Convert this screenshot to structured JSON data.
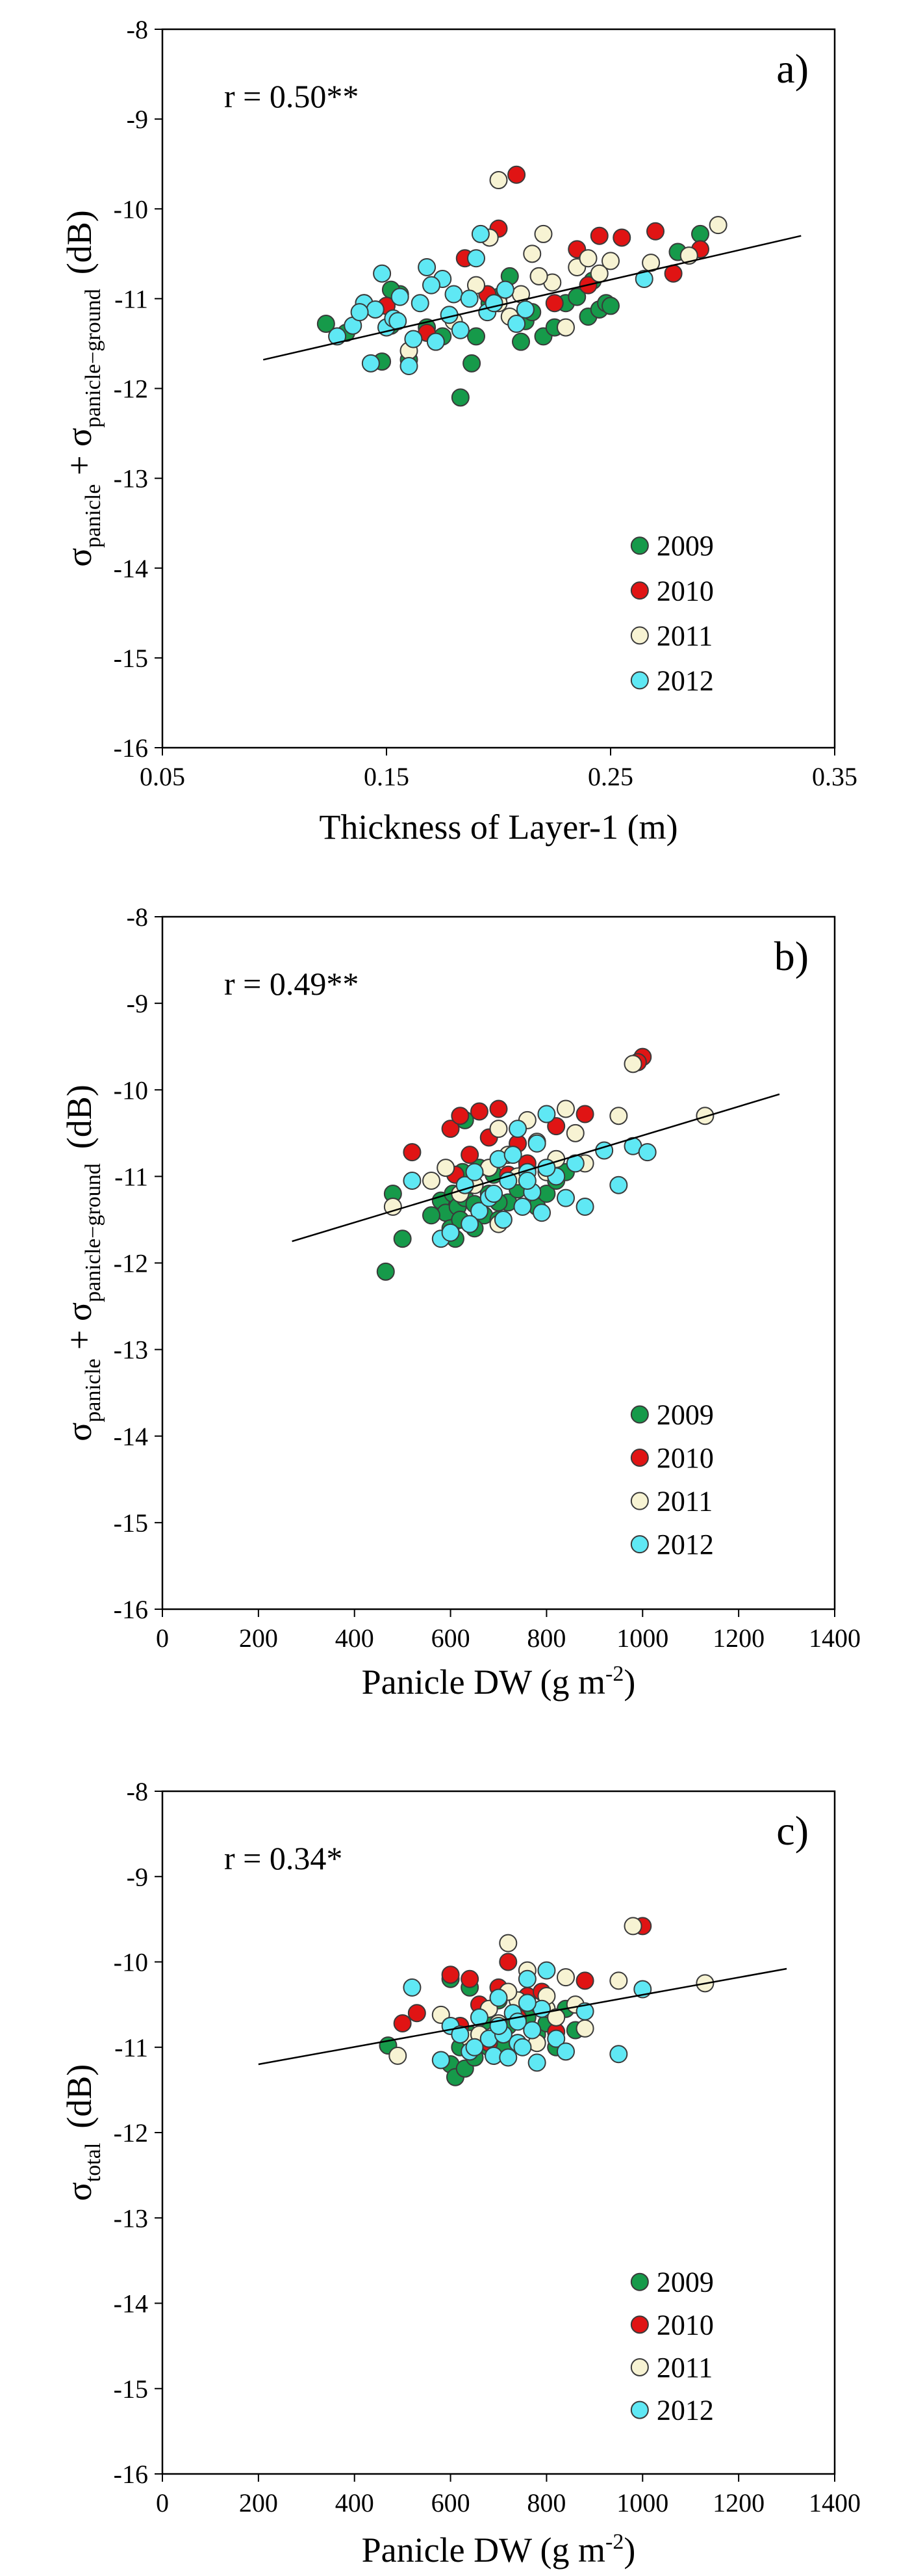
{
  "colors": {
    "2009": "#169a4a",
    "2010": "#e01414",
    "2011": "#f7f3d3",
    "2012": "#5fe8f4",
    "marker_edge": "#3a3a3a",
    "fit_line": "#000000"
  },
  "chart_data": [
    {
      "type": "scatter",
      "panel_label": "a)",
      "annotation": "r = 0.50**",
      "xlabel": "Thickness of Layer-1 (m)",
      "ylabel": {
        "prefix": "σ",
        "sub1": "panicle",
        "mid": " + σ",
        "sub2": "panicle−ground",
        "unit": "(dB)"
      },
      "xlim": [
        0.05,
        0.35
      ],
      "ylim": [
        -16,
        -8
      ],
      "xticks": [
        0.05,
        0.15,
        0.25,
        0.35
      ],
      "xtick_labels": [
        "0.05",
        "0.15",
        "0.25",
        "0.35"
      ],
      "yticks": [
        -16,
        -15,
        -14,
        -13,
        -12,
        -11,
        -10,
        -9,
        -8
      ],
      "ytick_labels": [
        "-16",
        "-15",
        "-14",
        "-13",
        "-12",
        "-11",
        "-10",
        "-9",
        "-8"
      ],
      "legend": [
        "2009",
        "2010",
        "2011",
        "2012"
      ],
      "fit_line": {
        "x": [
          0.095,
          0.335
        ],
        "y": [
          -11.68,
          -10.3
        ]
      },
      "series": [
        {
          "name": "2009",
          "x": [
            0.123,
            0.132,
            0.14,
            0.148,
            0.152,
            0.156,
            0.16,
            0.168,
            0.175,
            0.183,
            0.188,
            0.19,
            0.196,
            0.2,
            0.205,
            0.21,
            0.212,
            0.215,
            0.22,
            0.225,
            0.23,
            0.235,
            0.24,
            0.242,
            0.245,
            0.248,
            0.25,
            0.28,
            0.29,
            0.152
          ],
          "y": [
            -11.28,
            -11.38,
            -11.05,
            -11.7,
            -11.3,
            -10.95,
            -11.68,
            -11.32,
            -11.42,
            -12.1,
            -11.72,
            -11.42,
            -11.05,
            -10.98,
            -10.75,
            -11.48,
            -11.25,
            -11.15,
            -11.42,
            -11.32,
            -11.05,
            -10.98,
            -11.2,
            -10.8,
            -11.12,
            -11.05,
            -11.08,
            -10.48,
            -10.28,
            -10.9
          ]
        },
        {
          "name": "2010",
          "x": [
            0.15,
            0.168,
            0.185,
            0.2,
            0.208,
            0.218,
            0.235,
            0.24,
            0.245,
            0.255,
            0.27,
            0.278,
            0.29,
            0.195,
            0.225
          ],
          "y": [
            -11.08,
            -11.38,
            -10.55,
            -10.22,
            -9.62,
            -10.75,
            -10.45,
            -10.85,
            -10.3,
            -10.32,
            -10.25,
            -10.72,
            -10.45,
            -10.95,
            -11.05
          ]
        },
        {
          "name": "2011",
          "x": [
            0.16,
            0.18,
            0.19,
            0.196,
            0.2,
            0.205,
            0.21,
            0.215,
            0.22,
            0.224,
            0.23,
            0.235,
            0.24,
            0.245,
            0.25,
            0.268,
            0.285,
            0.298,
            0.218,
            0.2
          ],
          "y": [
            -11.58,
            -11.25,
            -10.85,
            -10.32,
            -9.68,
            -11.2,
            -10.95,
            -10.5,
            -10.28,
            -10.82,
            -11.32,
            -10.65,
            -10.55,
            -10.72,
            -10.58,
            -10.6,
            -10.52,
            -10.18,
            -10.75,
            -11.05
          ]
        },
        {
          "name": "2012",
          "x": [
            0.128,
            0.135,
            0.14,
            0.143,
            0.145,
            0.148,
            0.15,
            0.153,
            0.156,
            0.16,
            0.162,
            0.165,
            0.168,
            0.172,
            0.175,
            0.178,
            0.18,
            0.183,
            0.187,
            0.19,
            0.192,
            0.195,
            0.198,
            0.203,
            0.208,
            0.212,
            0.265,
            0.155,
            0.17,
            0.138
          ],
          "y": [
            -11.42,
            -11.3,
            -11.05,
            -11.72,
            -11.12,
            -10.72,
            -11.32,
            -11.22,
            -10.98,
            -11.75,
            -11.45,
            -11.05,
            -10.65,
            -11.48,
            -10.78,
            -11.18,
            -10.95,
            -11.35,
            -11.0,
            -10.55,
            -10.28,
            -11.15,
            -11.05,
            -10.9,
            -11.28,
            -11.12,
            -10.78,
            -11.25,
            -10.85,
            -11.15
          ]
        }
      ]
    },
    {
      "type": "scatter",
      "panel_label": "b)",
      "annotation": "r = 0.49**",
      "xlabel": "Panicle DW (g m",
      "xlabel_sup": "-2",
      "xlabel_end": ")",
      "ylabel": {
        "prefix": "σ",
        "sub1": "panicle",
        "mid": " + σ",
        "sub2": "panicle−ground",
        "unit": "(dB)"
      },
      "xlim": [
        0,
        1400
      ],
      "ylim": [
        -16,
        -8
      ],
      "xticks": [
        0,
        200,
        400,
        600,
        800,
        1000,
        1200,
        1400
      ],
      "xtick_labels": [
        "0",
        "200",
        "400",
        "600",
        "800",
        "1000",
        "1200",
        "1400"
      ],
      "yticks": [
        -16,
        -15,
        -14,
        -13,
        -12,
        -11,
        -10,
        -9,
        -8
      ],
      "ytick_labels": [
        "-16",
        "-15",
        "-14",
        "-13",
        "-12",
        "-11",
        "-10",
        "-9",
        "-8"
      ],
      "legend": [
        "2009",
        "2010",
        "2011",
        "2012"
      ],
      "fit_line": {
        "x": [
          270,
          1285
        ],
        "y": [
          -11.75,
          -10.05
        ]
      },
      "series": [
        {
          "name": "2009",
          "x": [
            465,
            480,
            500,
            580,
            590,
            600,
            605,
            610,
            615,
            620,
            625,
            630,
            640,
            650,
            660,
            670,
            680,
            690,
            700,
            720,
            740,
            760,
            780,
            800,
            820,
            840,
            630,
            650,
            700,
            560
          ],
          "y": [
            -12.1,
            -11.2,
            -11.72,
            -11.28,
            -11.42,
            -11.6,
            -11.2,
            -11.72,
            -11.35,
            -11.5,
            -10.95,
            -11.25,
            -11.1,
            -11.32,
            -10.9,
            -11.45,
            -11.2,
            -10.98,
            -11.5,
            -11.3,
            -11.15,
            -10.9,
            -11.35,
            -11.2,
            -11.05,
            -10.95,
            -10.35,
            -11.6,
            -11.3,
            -11.45
          ]
        },
        {
          "name": "2010",
          "x": [
            520,
            600,
            610,
            620,
            640,
            660,
            680,
            700,
            720,
            740,
            760,
            880,
            1000,
            990,
            820
          ],
          "y": [
            -10.72,
            -10.45,
            -10.98,
            -10.3,
            -10.75,
            -10.25,
            -10.55,
            -10.22,
            -10.98,
            -10.62,
            -10.85,
            -10.28,
            -9.62,
            -9.68,
            -10.42
          ]
        },
        {
          "name": "2011",
          "x": [
            480,
            560,
            590,
            620,
            680,
            700,
            720,
            740,
            780,
            800,
            820,
            840,
            860,
            880,
            950,
            980,
            1130,
            700,
            760,
            650
          ],
          "y": [
            -11.35,
            -11.05,
            -10.9,
            -11.2,
            -10.9,
            -11.55,
            -10.75,
            -11.0,
            -10.6,
            -10.95,
            -10.8,
            -10.22,
            -10.5,
            -10.85,
            -10.3,
            -9.7,
            -10.3,
            -10.45,
            -10.35,
            -11.1
          ]
        },
        {
          "name": "2012",
          "x": [
            520,
            580,
            600,
            630,
            650,
            660,
            680,
            700,
            710,
            720,
            740,
            750,
            760,
            770,
            780,
            790,
            800,
            820,
            840,
            860,
            880,
            920,
            950,
            980,
            1010,
            640,
            690,
            730,
            800,
            760
          ],
          "y": [
            -11.05,
            -11.72,
            -11.65,
            -11.1,
            -10.95,
            -11.4,
            -11.25,
            -10.8,
            -11.5,
            -11.05,
            -10.45,
            -11.35,
            -10.95,
            -11.18,
            -10.62,
            -11.42,
            -10.28,
            -11.0,
            -11.25,
            -10.85,
            -11.35,
            -10.7,
            -11.1,
            -10.65,
            -10.72,
            -11.55,
            -11.2,
            -10.75,
            -10.9,
            -11.05
          ]
        }
      ]
    },
    {
      "type": "scatter",
      "panel_label": "c)",
      "annotation": "r = 0.34*",
      "xlabel": "Panicle DW (g m",
      "xlabel_sup": "-2",
      "xlabel_end": ")",
      "ylabel": {
        "prefix": "σ",
        "sub1": "total",
        "mid": "",
        "sub2": "",
        "unit": "(dB)"
      },
      "xlim": [
        0,
        1400
      ],
      "ylim": [
        -16,
        -8
      ],
      "xticks": [
        0,
        200,
        400,
        600,
        800,
        1000,
        1200,
        1400
      ],
      "xtick_labels": [
        "0",
        "200",
        "400",
        "600",
        "800",
        "1000",
        "1200",
        "1400"
      ],
      "yticks": [
        -16,
        -15,
        -14,
        -13,
        -12,
        -11,
        -10,
        -9,
        -8
      ],
      "ytick_labels": [
        "-16",
        "-15",
        "-14",
        "-13",
        "-12",
        "-11",
        "-10",
        "-9",
        "-8"
      ],
      "legend": [
        "2009",
        "2010",
        "2011",
        "2012"
      ],
      "fit_line": {
        "x": [
          200,
          1300
        ],
        "y": [
          -11.2,
          -10.08
        ]
      },
      "series": [
        {
          "name": "2009",
          "x": [
            470,
            600,
            610,
            620,
            630,
            640,
            650,
            660,
            670,
            680,
            690,
            700,
            710,
            720,
            740,
            760,
            780,
            800,
            820,
            840,
            860,
            600,
            640,
            700,
            760
          ],
          "y": [
            -10.98,
            -11.2,
            -11.35,
            -11.0,
            -11.25,
            -10.85,
            -11.12,
            -10.95,
            -10.7,
            -11.0,
            -11.1,
            -10.88,
            -11.0,
            -10.75,
            -10.95,
            -10.6,
            -10.85,
            -10.72,
            -11.0,
            -10.55,
            -10.8,
            -10.2,
            -10.3,
            -10.45,
            -10.65
          ]
        },
        {
          "name": "2010",
          "x": [
            500,
            530,
            600,
            620,
            640,
            660,
            700,
            720,
            740,
            760,
            790,
            880,
            1000,
            820,
            680
          ],
          "y": [
            -10.72,
            -10.6,
            -10.15,
            -10.75,
            -10.2,
            -10.5,
            -10.3,
            -10.0,
            -10.65,
            -10.4,
            -10.35,
            -10.22,
            -9.58,
            -10.82,
            -10.95
          ]
        },
        {
          "name": "2011",
          "x": [
            490,
            580,
            640,
            680,
            700,
            720,
            740,
            760,
            780,
            800,
            820,
            840,
            860,
            880,
            950,
            980,
            1130,
            720,
            660,
            800
          ],
          "y": [
            -11.1,
            -10.62,
            -10.9,
            -10.55,
            -10.72,
            -9.78,
            -10.45,
            -10.1,
            -10.95,
            -10.55,
            -10.65,
            -10.18,
            -10.5,
            -10.78,
            -10.22,
            -9.58,
            -10.25,
            -10.35,
            -10.85,
            -10.4
          ]
        },
        {
          "name": "2012",
          "x": [
            520,
            580,
            600,
            640,
            660,
            680,
            690,
            700,
            710,
            720,
            730,
            740,
            750,
            760,
            770,
            780,
            790,
            800,
            820,
            840,
            880,
            950,
            1000,
            700,
            760,
            650,
            620,
            740
          ],
          "y": [
            -10.3,
            -11.15,
            -10.75,
            -11.05,
            -10.65,
            -10.9,
            -11.1,
            -10.42,
            -10.85,
            -11.12,
            -10.6,
            -10.95,
            -11.0,
            -10.2,
            -10.8,
            -11.18,
            -10.55,
            -10.1,
            -10.9,
            -11.05,
            -10.58,
            -11.08,
            -10.32,
            -10.75,
            -10.48,
            -11.0,
            -10.85,
            -10.7
          ]
        }
      ]
    }
  ]
}
